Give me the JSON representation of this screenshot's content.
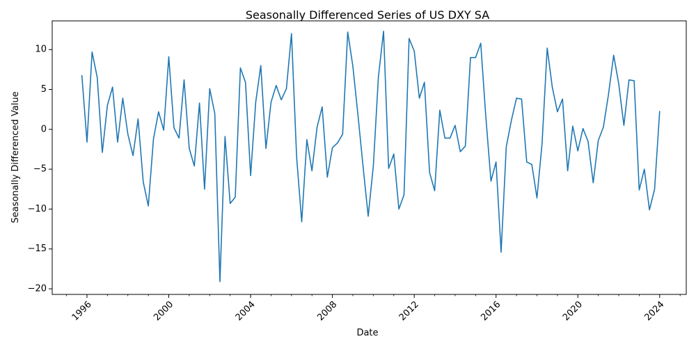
{
  "chart_data": {
    "type": "line",
    "title": "Seasonally Differenced Series of US DXY SA",
    "xlabel": "Date",
    "ylabel": "Seasonally Differenced Value",
    "xlim": [
      1994.3,
      2025.3
    ],
    "ylim": [
      -20.7,
      13.6
    ],
    "grid": false,
    "x_ticks": [
      1996,
      2000,
      2004,
      2008,
      2012,
      2016,
      2020,
      2024
    ],
    "x_tick_labels": [
      "1996",
      "2000",
      "2004",
      "2008",
      "2012",
      "2016",
      "2020",
      "2024"
    ],
    "y_ticks": [
      -20,
      -15,
      -10,
      -5,
      0,
      5,
      10
    ],
    "y_tick_labels": [
      "−20",
      "−15",
      "−10",
      "−5",
      "0",
      "5",
      "10"
    ],
    "series": [
      {
        "color": "#1f77b4",
        "x": [
          1995.75,
          1996.0,
          1996.25,
          1996.5,
          1996.75,
          1997.0,
          1997.25,
          1997.5,
          1997.75,
          1998.0,
          1998.25,
          1998.5,
          1998.75,
          1999.0,
          1999.25,
          1999.5,
          1999.75,
          2000.0,
          2000.25,
          2000.5,
          2000.75,
          2001.0,
          2001.25,
          2001.5,
          2001.75,
          2002.0,
          2002.25,
          2002.5,
          2002.75,
          2003.0,
          2003.25,
          2003.5,
          2003.75,
          2004.0,
          2004.25,
          2004.5,
          2004.75,
          2005.0,
          2005.25,
          2005.5,
          2005.75,
          2006.0,
          2006.25,
          2006.5,
          2006.75,
          2007.0,
          2007.25,
          2007.5,
          2007.75,
          2008.0,
          2008.25,
          2008.5,
          2008.75,
          2009.0,
          2009.25,
          2009.5,
          2009.75,
          2010.0,
          2010.25,
          2010.5,
          2010.75,
          2011.0,
          2011.25,
          2011.5,
          2011.75,
          2012.0,
          2012.25,
          2012.5,
          2012.75,
          2013.0,
          2013.25,
          2013.5,
          2013.75,
          2014.0,
          2014.25,
          2014.5,
          2014.75,
          2015.0,
          2015.25,
          2015.5,
          2015.75,
          2016.0,
          2016.25,
          2016.5,
          2016.75,
          2017.0,
          2017.25,
          2017.5,
          2017.75,
          2018.0,
          2018.25,
          2018.5,
          2018.75,
          2019.0,
          2019.25,
          2019.5,
          2019.75,
          2020.0,
          2020.25,
          2020.5,
          2020.75,
          2021.0,
          2021.25,
          2021.5,
          2021.75,
          2022.0,
          2022.25,
          2022.5,
          2022.75,
          2023.0,
          2023.25,
          2023.5,
          2023.75,
          2024.0
        ],
        "values": [
          6.8,
          -1.6,
          9.7,
          6.5,
          -2.9,
          3.0,
          5.3,
          -1.6,
          3.9,
          -0.6,
          -3.3,
          1.3,
          -6.6,
          -9.6,
          -1.2,
          2.2,
          -0.1,
          9.1,
          0.2,
          -1.1,
          6.2,
          -2.4,
          -4.6,
          3.3,
          -7.5,
          5.1,
          2.0,
          -19.1,
          -0.9,
          -9.3,
          -8.5,
          7.7,
          5.9,
          -5.8,
          3.4,
          8.0,
          -2.4,
          3.4,
          5.5,
          3.7,
          5.1,
          12.0,
          -3.5,
          -11.6,
          -1.3,
          -5.2,
          0.3,
          2.8,
          -6.0,
          -2.3,
          -1.7,
          -0.6,
          12.2,
          7.9,
          1.8,
          -4.7,
          -10.9,
          -4.6,
          6.6,
          12.3,
          -4.9,
          -3.1,
          -10.0,
          -8.2,
          11.4,
          9.8,
          3.9,
          5.9,
          -5.4,
          -7.7,
          2.4,
          -1.1,
          -1.1,
          0.5,
          -2.8,
          -2.1,
          9.0,
          9.0,
          10.8,
          1.6,
          -6.5,
          -4.1,
          -15.4,
          -2.2,
          1.1,
          3.9,
          3.8,
          -4.1,
          -4.4,
          -8.6,
          -1.8,
          10.2,
          5.3,
          2.2,
          3.8,
          -5.2,
          0.4,
          -2.7,
          0.1,
          -1.5,
          -6.7,
          -1.4,
          0.3,
          4.4,
          9.3,
          5.7,
          0.5,
          6.2,
          6.1,
          -7.6,
          -5.0,
          -10.1,
          -7.5,
          2.3
        ]
      }
    ]
  }
}
